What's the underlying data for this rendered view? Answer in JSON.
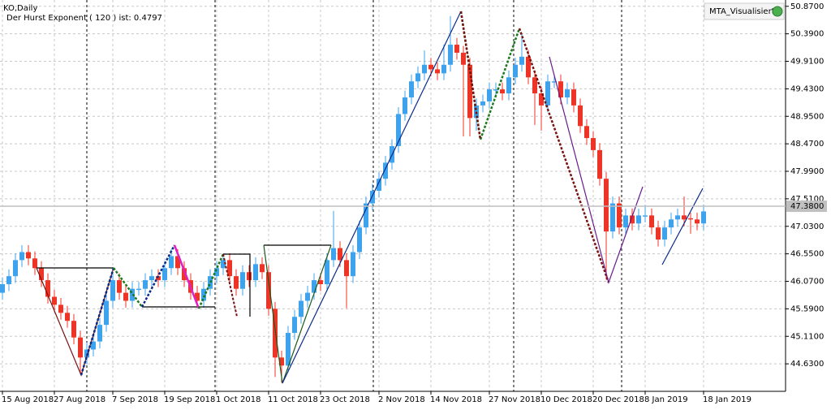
{
  "chart_data": {
    "type": "candlestick",
    "title": "KO,Daily",
    "subtitle": "Der Hurst Exponent ( 120 ) ist: 0.4797",
    "indicator_label": "MTA_Visualisiert",
    "up_color": "#3ea3ec",
    "down_color": "#ec3427",
    "grid": true,
    "ylim": [
      44.15,
      50.98
    ],
    "yticks": [
      {
        "value": 50.87,
        "label": "50.8700"
      },
      {
        "value": 50.39,
        "label": "50.3900"
      },
      {
        "value": 49.91,
        "label": "49.9100"
      },
      {
        "value": 49.43,
        "label": "49.4300"
      },
      {
        "value": 48.95,
        "label": "48.9500"
      },
      {
        "value": 48.47,
        "label": "48.4700"
      },
      {
        "value": 47.99,
        "label": "47.9900"
      },
      {
        "value": 47.51,
        "label": "47.5100"
      },
      {
        "value": 47.03,
        "label": "47.0300"
      },
      {
        "value": 46.55,
        "label": "46.5500"
      },
      {
        "value": 46.07,
        "label": "46.0700"
      },
      {
        "value": 45.59,
        "label": "45.5900"
      },
      {
        "value": 45.11,
        "label": "45.1100"
      },
      {
        "value": 44.63,
        "label": "44.6300"
      }
    ],
    "current_price": {
      "value": 47.38,
      "label": "47.3800"
    },
    "categories": [
      "15 Aug 2018",
      null,
      null,
      null,
      null,
      null,
      null,
      null,
      "27 Aug 2018",
      null,
      null,
      null,
      null,
      null,
      null,
      null,
      null,
      "7 Sep 2018",
      null,
      null,
      null,
      null,
      null,
      null,
      null,
      "19 Sep 2018",
      null,
      null,
      null,
      null,
      null,
      null,
      null,
      "1 Oct 2018",
      null,
      null,
      null,
      null,
      null,
      null,
      null,
      "11 Oct 2018",
      null,
      null,
      null,
      null,
      null,
      null,
      null,
      "23 Oct 2018",
      null,
      null,
      null,
      null,
      null,
      null,
      null,
      null,
      "2 Nov 2018",
      null,
      null,
      null,
      null,
      null,
      null,
      null,
      "14 Nov 2018",
      null,
      null,
      null,
      null,
      null,
      null,
      null,
      null,
      "27 Nov 2018",
      null,
      null,
      null,
      null,
      null,
      null,
      null,
      "10 Dec 2018",
      null,
      null,
      null,
      null,
      null,
      null,
      null,
      "20 Dec 2018",
      null,
      null,
      null,
      null,
      null,
      null,
      null,
      "8 Jan 2019",
      null,
      null,
      null,
      null,
      null,
      null,
      null,
      null,
      "18 Jan 2019"
    ],
    "candles": [
      [
        45.87,
        46.14,
        45.75,
        46.02
      ],
      [
        46.02,
        46.28,
        45.9,
        46.16
      ],
      [
        46.16,
        46.56,
        46.04,
        46.44
      ],
      [
        46.44,
        46.7,
        46.32,
        46.58
      ],
      [
        46.58,
        46.7,
        46.35,
        46.47
      ],
      [
        46.47,
        46.59,
        46.18,
        46.3
      ],
      [
        46.3,
        46.42,
        45.97,
        46.09
      ],
      [
        46.09,
        46.21,
        45.68,
        45.8
      ],
      [
        45.8,
        45.92,
        45.54,
        45.66
      ],
      [
        45.66,
        45.78,
        45.4,
        45.52
      ],
      [
        45.52,
        45.64,
        45.26,
        45.38
      ],
      [
        45.38,
        45.5,
        44.97,
        45.09
      ],
      [
        45.09,
        45.21,
        44.45,
        44.74
      ],
      [
        44.74,
        45.0,
        44.62,
        44.88
      ],
      [
        44.88,
        45.14,
        44.76,
        45.02
      ],
      [
        45.02,
        45.43,
        44.9,
        45.31
      ],
      [
        45.31,
        45.85,
        45.19,
        45.73
      ],
      [
        45.73,
        46.21,
        45.61,
        46.09
      ],
      [
        46.09,
        46.21,
        45.75,
        45.87
      ],
      [
        45.87,
        45.99,
        45.61,
        45.73
      ],
      [
        45.73,
        46.06,
        45.61,
        45.94
      ],
      [
        45.92,
        46.06,
        45.82,
        45.94
      ],
      [
        45.94,
        46.21,
        45.82,
        46.09
      ],
      [
        46.09,
        46.28,
        45.97,
        46.16
      ],
      [
        46.16,
        46.28,
        45.97,
        46.09
      ],
      [
        46.09,
        46.42,
        45.97,
        46.3
      ],
      [
        46.3,
        46.63,
        46.18,
        46.51
      ],
      [
        46.51,
        46.63,
        46.18,
        46.3
      ],
      [
        46.3,
        46.42,
        45.97,
        46.09
      ],
      [
        46.09,
        46.21,
        45.75,
        45.87
      ],
      [
        45.87,
        45.99,
        45.61,
        45.73
      ],
      [
        45.73,
        46.06,
        45.61,
        45.94
      ],
      [
        45.94,
        46.28,
        45.82,
        46.16
      ],
      [
        46.16,
        46.42,
        46.04,
        46.3
      ],
      [
        46.3,
        46.56,
        46.18,
        46.44
      ],
      [
        46.44,
        46.56,
        46.04,
        46.16
      ],
      [
        46.16,
        46.28,
        45.82,
        45.94
      ],
      [
        45.94,
        46.35,
        45.82,
        46.23
      ],
      [
        46.23,
        46.35,
        45.97,
        46.09
      ],
      [
        46.09,
        46.49,
        45.97,
        46.37
      ],
      [
        46.37,
        46.49,
        46.11,
        46.23
      ],
      [
        46.23,
        46.35,
        45.47,
        45.59
      ],
      [
        45.59,
        45.71,
        44.4,
        44.74
      ],
      [
        44.74,
        44.86,
        44.3,
        44.6
      ],
      [
        44.6,
        45.29,
        44.48,
        45.17
      ],
      [
        45.17,
        45.57,
        45.05,
        45.45
      ],
      [
        45.45,
        45.85,
        45.33,
        45.73
      ],
      [
        45.73,
        45.99,
        45.61,
        45.87
      ],
      [
        45.87,
        46.21,
        45.75,
        46.09
      ],
      [
        46.09,
        46.21,
        45.9,
        46.02
      ],
      [
        46.02,
        46.56,
        45.9,
        46.44
      ],
      [
        46.44,
        47.3,
        46.32,
        46.65
      ],
      [
        46.65,
        46.77,
        46.32,
        46.44
      ],
      [
        46.44,
        46.56,
        45.6,
        46.16
      ],
      [
        46.16,
        46.7,
        46.04,
        46.58
      ],
      [
        46.58,
        47.13,
        46.46,
        47.01
      ],
      [
        47.01,
        47.55,
        46.89,
        47.43
      ],
      [
        47.43,
        47.77,
        47.31,
        47.65
      ],
      [
        47.65,
        47.98,
        47.53,
        47.86
      ],
      [
        47.86,
        48.26,
        47.74,
        48.14
      ],
      [
        48.14,
        48.55,
        48.02,
        48.43
      ],
      [
        48.43,
        49.11,
        48.31,
        48.99
      ],
      [
        48.99,
        49.4,
        48.87,
        49.28
      ],
      [
        49.28,
        49.68,
        49.16,
        49.56
      ],
      [
        49.56,
        49.82,
        49.44,
        49.7
      ],
      [
        49.7,
        50.1,
        49.58,
        49.85
      ],
      [
        49.85,
        49.97,
        49.65,
        49.77
      ],
      [
        49.77,
        49.89,
        49.58,
        49.7
      ],
      [
        49.7,
        50.2,
        49.58,
        49.85
      ],
      [
        49.85,
        50.7,
        49.73,
        50.2
      ],
      [
        50.2,
        50.32,
        49.94,
        50.06
      ],
      [
        50.06,
        50.18,
        48.6,
        49.85
      ],
      [
        49.85,
        49.97,
        48.6,
        48.92
      ],
      [
        48.92,
        49.26,
        48.7,
        49.14
      ],
      [
        49.14,
        49.33,
        49.02,
        49.21
      ],
      [
        49.21,
        49.54,
        49.09,
        49.42
      ],
      [
        49.4,
        49.54,
        49.3,
        49.42
      ],
      [
        49.42,
        49.54,
        49.23,
        49.35
      ],
      [
        49.35,
        49.75,
        49.23,
        49.63
      ],
      [
        49.63,
        49.97,
        49.51,
        49.85
      ],
      [
        49.85,
        50.4,
        49.73,
        49.99
      ],
      [
        49.99,
        50.11,
        49.51,
        49.63
      ],
      [
        49.63,
        49.75,
        48.8,
        49.35
      ],
      [
        49.35,
        49.47,
        48.7,
        49.14
      ],
      [
        49.14,
        49.68,
        49.02,
        49.56
      ],
      [
        49.54,
        49.68,
        49.44,
        49.56
      ],
      [
        49.56,
        49.68,
        49.16,
        49.28
      ],
      [
        49.28,
        49.54,
        49.16,
        49.42
      ],
      [
        49.42,
        49.54,
        49.02,
        49.14
      ],
      [
        49.14,
        49.26,
        48.66,
        48.78
      ],
      [
        48.78,
        48.9,
        48.45,
        48.57
      ],
      [
        48.57,
        48.69,
        48.24,
        48.36
      ],
      [
        48.36,
        48.48,
        47.74,
        47.86
      ],
      [
        47.86,
        47.98,
        46.1,
        46.94
      ],
      [
        46.94,
        47.55,
        46.82,
        47.43
      ],
      [
        47.43,
        47.55,
        46.89,
        47.01
      ],
      [
        47.01,
        47.34,
        46.89,
        47.22
      ],
      [
        47.22,
        47.34,
        46.96,
        47.08
      ],
      [
        47.08,
        47.34,
        46.96,
        47.22
      ],
      [
        47.2,
        47.4,
        47.1,
        47.22
      ],
      [
        47.22,
        47.34,
        46.89,
        47.01
      ],
      [
        47.01,
        47.13,
        46.68,
        46.8
      ],
      [
        46.8,
        47.13,
        46.68,
        47.01
      ],
      [
        47.01,
        47.27,
        46.89,
        47.15
      ],
      [
        47.15,
        47.34,
        47.03,
        47.22
      ],
      [
        47.22,
        47.55,
        47.03,
        47.15
      ],
      [
        47.17,
        47.27,
        46.9,
        47.15
      ],
      [
        47.15,
        47.27,
        46.96,
        47.08
      ],
      [
        47.08,
        47.41,
        46.96,
        47.29
      ]
    ]
  }
}
